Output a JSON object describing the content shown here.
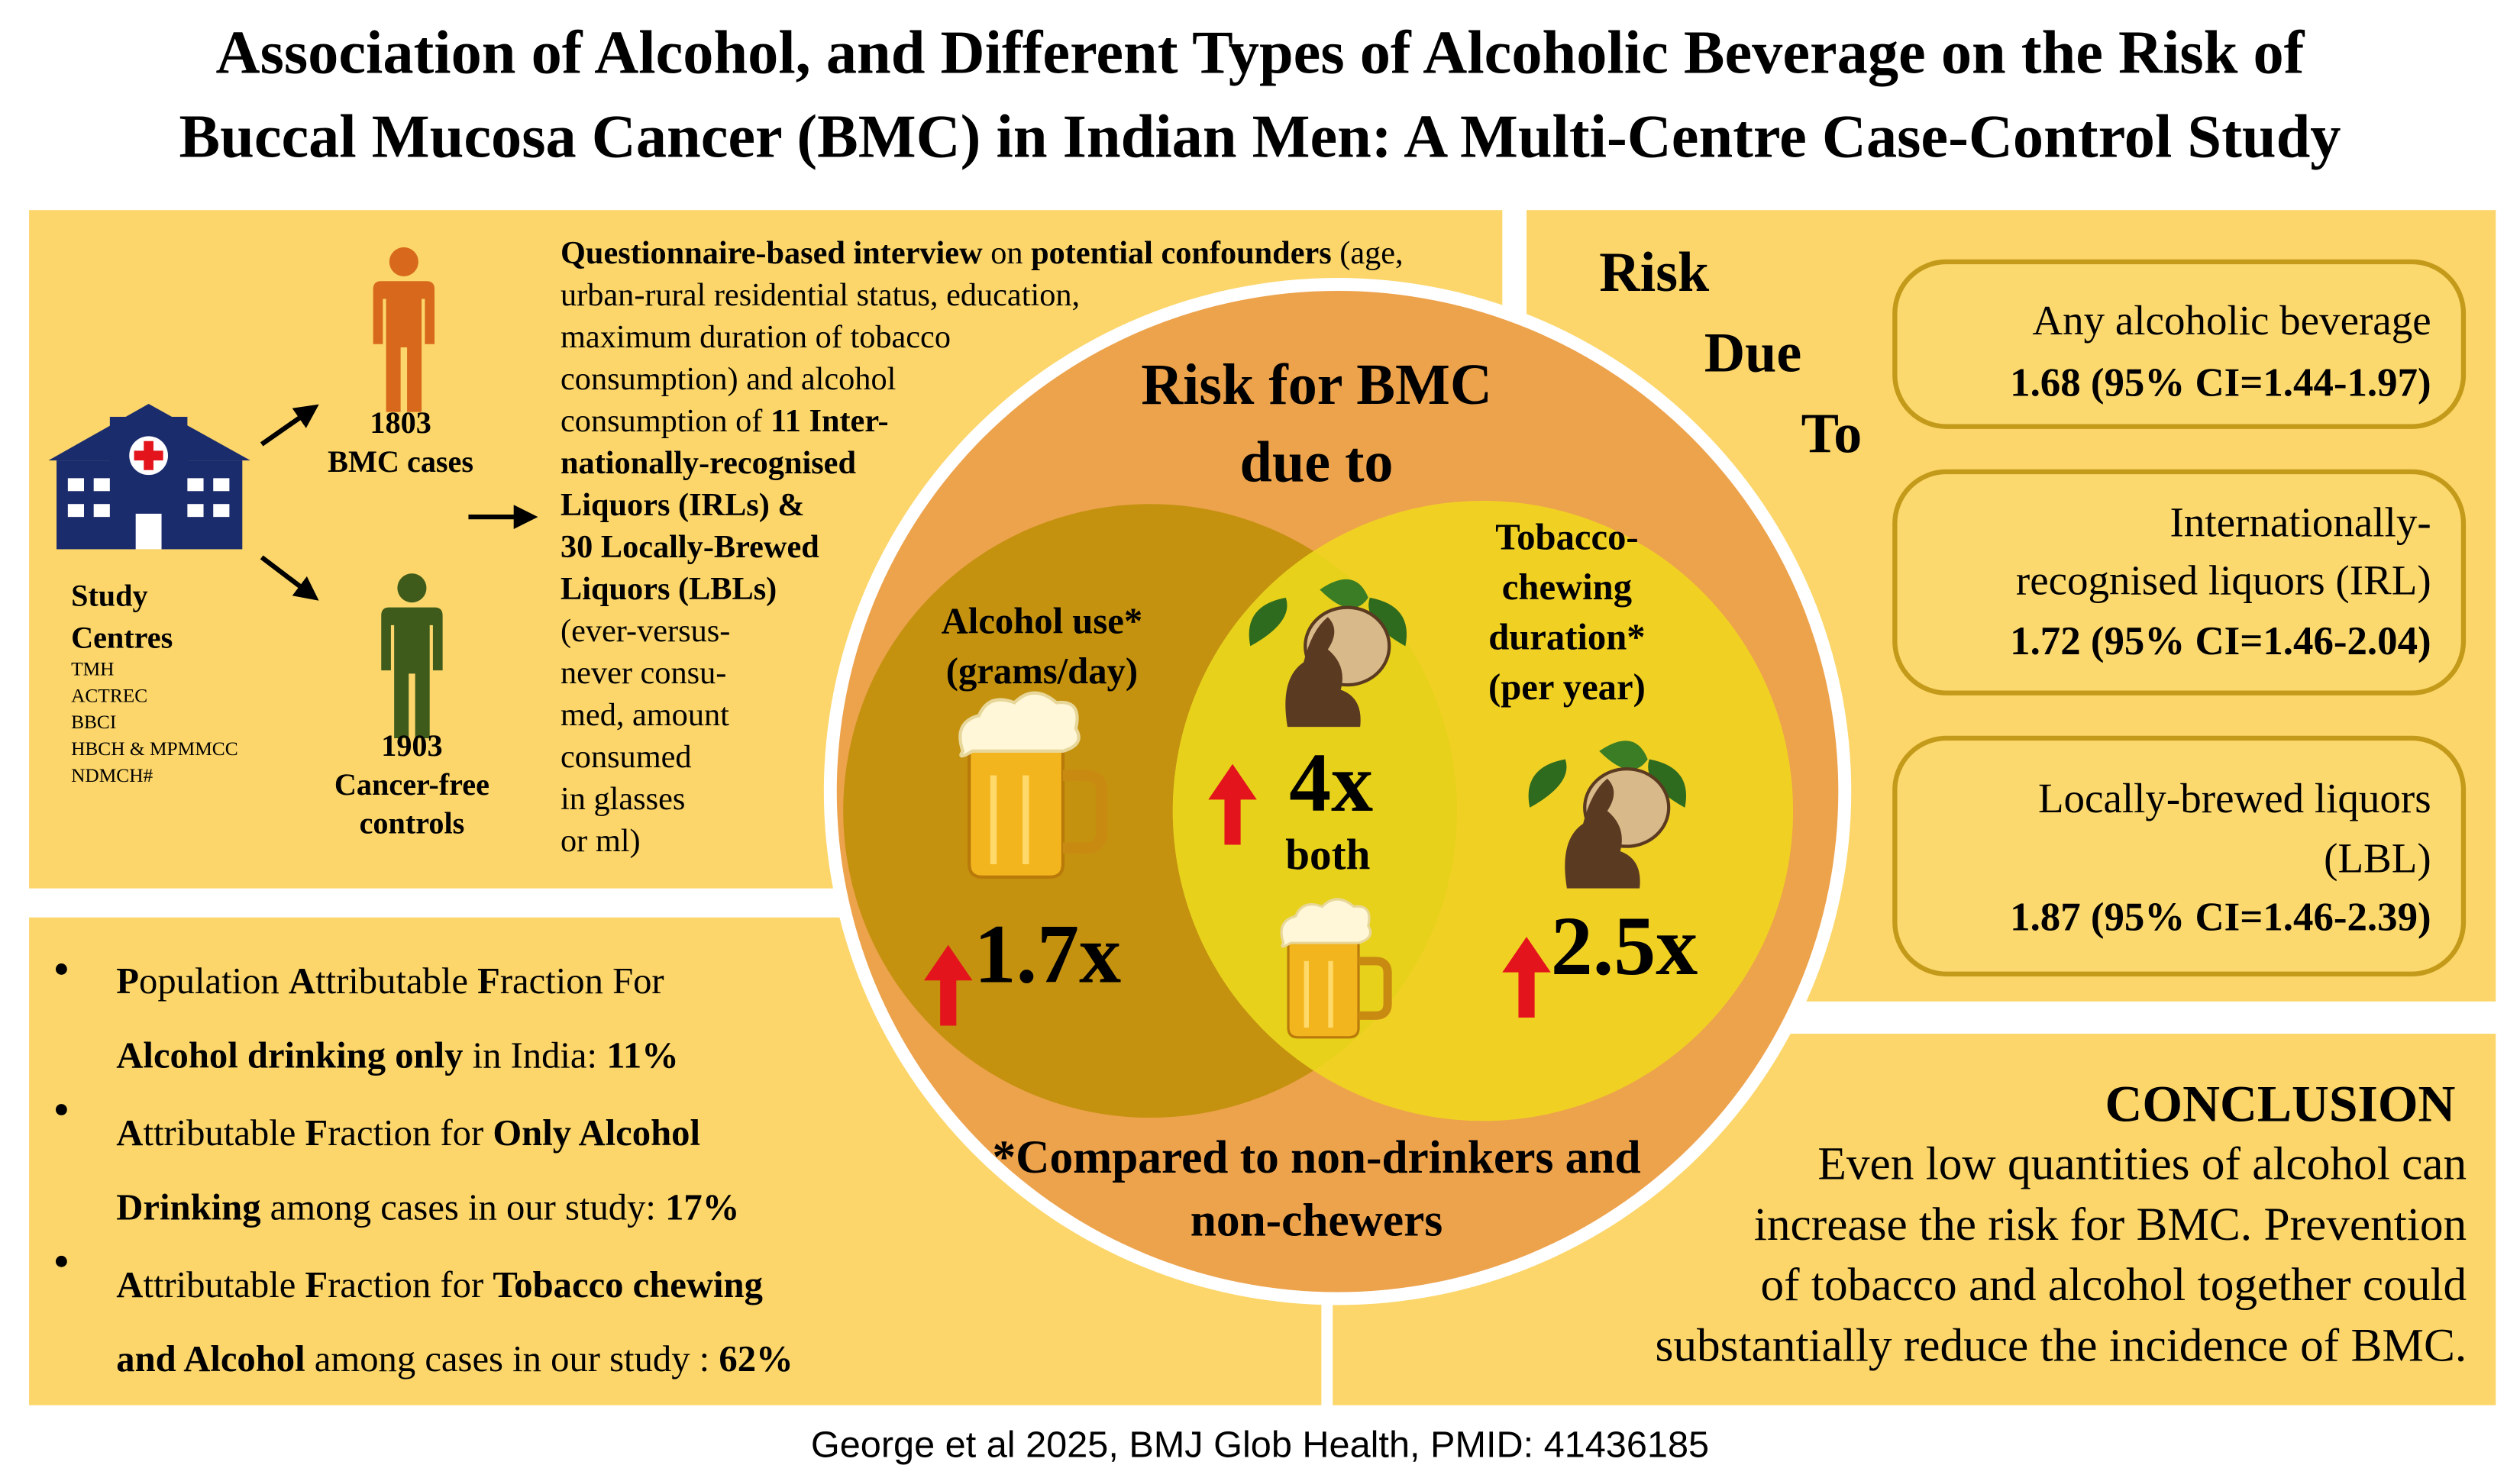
{
  "title": [
    "Association of Alcohol, and Different Types of Alcoholic Beverage on the Risk of",
    "Buccal Mucosa Cancer (BMC) in Indian Men: A Multi-Centre Case-Control Study"
  ],
  "study": {
    "heading": [
      "Study",
      "Centres"
    ],
    "centres": [
      "TMH",
      "ACTREC",
      "BBCI",
      "HBCH & MPMMCC",
      "NDMCH#"
    ],
    "cases": [
      "1803",
      "BMC cases"
    ],
    "controls": [
      "1903",
      "Cancer-free",
      "controls"
    ]
  },
  "questionnaire": {
    "lines": [
      [
        {
          "text": "Questionnaire-based interview",
          "bold": true
        },
        {
          "text": " on ",
          "bold": false
        },
        {
          "text": "potential confounders",
          "bold": true
        },
        {
          "text": " (age,",
          "bold": false
        }
      ],
      [
        {
          "text": "urban-rural residential status, education,",
          "bold": false
        }
      ],
      [
        {
          "text": " maximum duration of tobacco",
          "bold": false
        }
      ],
      [
        {
          "text": "consumption) and alcohol",
          "bold": false
        }
      ],
      [
        {
          "text": "consumption of ",
          "bold": false
        },
        {
          "text": "11 Inter-",
          "bold": true
        }
      ],
      [
        {
          "text": "nationally-recognised",
          "bold": true
        }
      ],
      [
        {
          "text": "Liquors (IRLs) &",
          "bold": true
        }
      ],
      [
        {
          "text": "30 Locally-Brewed",
          "bold": true
        }
      ],
      [
        {
          "text": "Liquors (LBLs)",
          "bold": true
        }
      ],
      [
        {
          "text": "(ever-versus-",
          "bold": false
        }
      ],
      [
        {
          "text": "never consu-",
          "bold": false
        }
      ],
      [
        {
          "text": "med, amount",
          "bold": false
        }
      ],
      [
        {
          "text": "consumed",
          "bold": false
        }
      ],
      [
        {
          "text": "in glasses",
          "bold": false
        }
      ],
      [
        {
          "text": "or ml)",
          "bold": false
        }
      ]
    ]
  },
  "venn": {
    "heading": [
      "Risk for BMC",
      "due to"
    ],
    "alcohol": [
      "Alcohol use*",
      "(grams/day)"
    ],
    "alcohol_risk": "1.7x",
    "both_risk": "4x",
    "both_label": "both",
    "tobacco": [
      "Tobacco-",
      "chewing",
      "duration*",
      "(per year)"
    ],
    "tobacco_risk": "2.5x",
    "footnote": [
      "*Compared to non-drinkers and",
      "non-chewers"
    ]
  },
  "risk_due_to": {
    "heading": [
      "Risk",
      "Due",
      "To"
    ],
    "boxes": [
      {
        "lines": [
          "Any alcoholic beverage"
        ],
        "estimate": "1.68 (95% CI=1.44-1.97)"
      },
      {
        "lines": [
          "Internationally-",
          "recognised liquors (IRL)"
        ],
        "estimate": "1.72 (95% CI=1.46-2.04)"
      },
      {
        "lines": [
          "Locally-brewed liquors",
          "(LBL)"
        ],
        "estimate": "1.87 (95% CI=1.46-2.39)"
      }
    ]
  },
  "fractions": [
    {
      "lines": [
        [
          {
            "text": "P",
            "bold": true
          },
          {
            "text": "opulation ",
            "bold": false
          },
          {
            "text": "A",
            "bold": true
          },
          {
            "text": "ttributable ",
            "bold": false
          },
          {
            "text": "F",
            "bold": true
          },
          {
            "text": "raction For",
            "bold": false
          }
        ],
        [
          {
            "text": "Alcohol drinking only",
            "bold": true
          },
          {
            "text": " in India: ",
            "bold": false
          },
          {
            "text": "11%",
            "bold": true
          }
        ]
      ]
    },
    {
      "lines": [
        [
          {
            "text": "A",
            "bold": true
          },
          {
            "text": "ttributable ",
            "bold": false
          },
          {
            "text": "F",
            "bold": true
          },
          {
            "text": "raction for ",
            "bold": false
          },
          {
            "text": "Only Alcohol",
            "bold": true
          }
        ],
        [
          {
            "text": "Drinking",
            "bold": true
          },
          {
            "text": " among cases in our study: ",
            "bold": false
          },
          {
            "text": "17%",
            "bold": true
          }
        ]
      ]
    },
    {
      "lines": [
        [
          {
            "text": "A",
            "bold": true
          },
          {
            "text": "ttributable ",
            "bold": false
          },
          {
            "text": "F",
            "bold": true
          },
          {
            "text": "raction for ",
            "bold": false
          },
          {
            "text": "Tobacco chewing",
            "bold": true
          }
        ],
        [
          {
            "text": "and Alcohol",
            "bold": true
          },
          {
            "text": " among cases in our study : ",
            "bold": false
          },
          {
            "text": "62%",
            "bold": true
          }
        ]
      ]
    }
  ],
  "conclusion": {
    "heading": "CONCLUSION",
    "lines": [
      "Even low quantities of alcohol can",
      "increase the risk for BMC. Prevention",
      "of tobacco and alcohol together could",
      "substantially reduce the incidence of BMC."
    ]
  },
  "footer": "George et al 2025, BMJ Glob Health, PMID: 41436185"
}
